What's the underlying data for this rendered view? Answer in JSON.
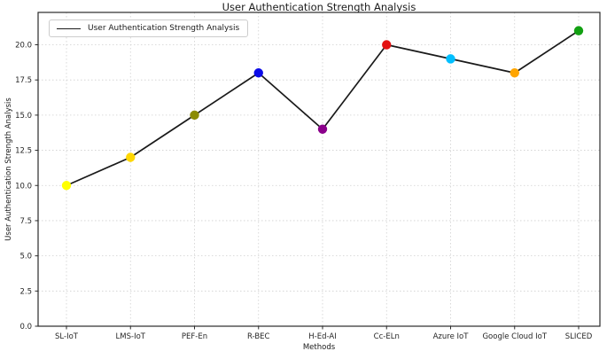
{
  "chart_data": {
    "type": "line",
    "title": "User Authentication Strength Analysis",
    "xlabel": "Methods",
    "ylabel": "User Authentication Strength Analysis",
    "legend": {
      "position": "upper left",
      "entries": [
        {
          "label": "User Authentication Strength Analysis",
          "line_color": "#1a1a1a"
        }
      ]
    },
    "categories": [
      "SL-IoT",
      "LMS-IoT",
      "PEF-En",
      "R-BEC",
      "H-Ed-AI",
      "Cc-ELn",
      "Azure IoT",
      "Google Cloud IoT",
      "SLICED"
    ],
    "values": [
      10,
      12,
      15,
      18,
      14,
      20,
      19,
      18,
      21
    ],
    "marker_colors": [
      "#FFFF00",
      "#FFD700",
      "#8B8B00",
      "#0B0BE8",
      "#8B008B",
      "#E31212",
      "#00BFFF",
      "#FFA500",
      "#12A012"
    ],
    "line_color": "#1a1a1a",
    "ylim": [
      0,
      22.3
    ],
    "yticks": [
      0,
      2.5,
      5,
      7.5,
      10,
      12.5,
      15,
      17.5,
      20
    ],
    "ytick_format_decimals": 1,
    "grid": true,
    "grid_color": "#cfcfcf",
    "spine_color": "#2a2a2a",
    "tick_label_color": "#262626"
  }
}
